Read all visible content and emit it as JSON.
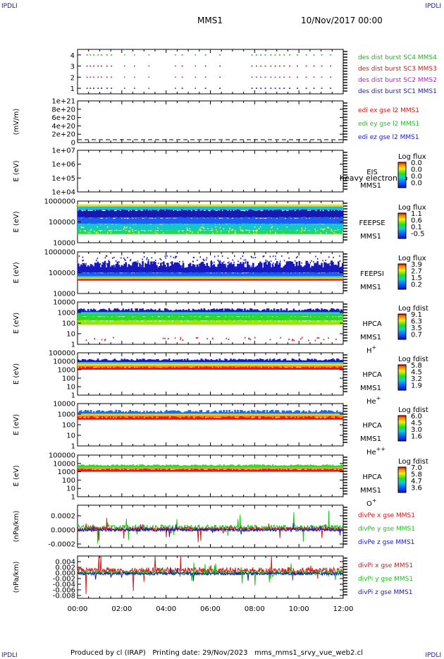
{
  "corner_labels": [
    "IPDLI",
    "IPDLI",
    "IPDLI",
    "IPDLI"
  ],
  "header": {
    "spacecraft": "MMS1",
    "date": "10/Nov/2017 00:00"
  },
  "footer": {
    "text": "Produced by cl (IRAP)   Printing date: 29/Nov/2023   mms_mms1_srvy_vue_web2.cl"
  },
  "colors": {
    "sc1": "#1818c8",
    "sc2": "#c818c8",
    "sc3": "#d81818",
    "sc4": "#18b818",
    "blue": "#1818c8",
    "red": "#d81818",
    "green": "#18c818"
  },
  "chart_data": [
    {
      "type": "scatter",
      "panel": "burst",
      "yticks": [
        "4",
        "3",
        "2",
        "1"
      ],
      "ylim": [
        0.5,
        4.5
      ],
      "series": [
        {
          "name": "des dist burst SC1 MMS1",
          "y": 1
        },
        {
          "name": "des dist burst SC2 MMS2",
          "y": 2
        },
        {
          "name": "des dist burst SC3 MMS3",
          "y": 3
        },
        {
          "name": "des dist burst SC4 MMS4",
          "y": 4
        }
      ],
      "burst_intervals_hours": [
        [
          0.4,
          0.5
        ],
        [
          0.55,
          0.65
        ],
        [
          0.7,
          0.8
        ],
        [
          0.9,
          1.0
        ],
        [
          1.05,
          1.15
        ],
        [
          1.3,
          1.45
        ],
        [
          1.5,
          1.6
        ],
        [
          2.1,
          2.15
        ],
        [
          2.55,
          2.6
        ],
        [
          3.2,
          3.25
        ],
        [
          4.4,
          4.45
        ],
        [
          4.7,
          4.8
        ],
        [
          5.3,
          5.35
        ],
        [
          5.75,
          5.85
        ],
        [
          6.4,
          6.5
        ],
        [
          7.85,
          7.95
        ],
        [
          8.05,
          8.15
        ],
        [
          8.25,
          8.4
        ],
        [
          8.45,
          8.55
        ],
        [
          8.7,
          8.8
        ],
        [
          8.9,
          9.0
        ],
        [
          9.1,
          9.2
        ],
        [
          9.3,
          9.4
        ],
        [
          9.55,
          9.65
        ],
        [
          9.9,
          10.0
        ],
        [
          10.3,
          10.4
        ],
        [
          10.65,
          10.75
        ],
        [
          11.0,
          11.1
        ],
        [
          11.4,
          11.5
        ]
      ]
    },
    {
      "type": "line",
      "panel": "edi",
      "ylabel": "(mV/m)",
      "yticks": [
        "1e+21",
        "8e+20",
        "6e+20",
        "4e+20",
        "2e+20",
        "0"
      ],
      "ylim": [
        0,
        1e+21
      ],
      "series": [
        {
          "name": "edi ex gse l2 MMS1"
        },
        {
          "name": "edi ey gse l2 MMS1"
        },
        {
          "name": "edi ez gse l2 MMS1"
        }
      ]
    },
    {
      "type": "heatmap",
      "panel": "eis",
      "ylabel": "E (eV)",
      "yticks": [
        "1e+07",
        "1e+06",
        "1e+05",
        "1e+04"
      ],
      "ylim": [
        10000.0,
        10000000.0
      ],
      "instrument": "EIS",
      "spacecraft": "MMS1",
      "overlay_text": "heavy electron to",
      "colorbar": {
        "title": "Log flux",
        "ticks": [
          "0.0",
          "0.0",
          "0.0",
          "0.0"
        ]
      }
    },
    {
      "type": "heatmap",
      "panel": "feepse",
      "ylabel": "E (eV)",
      "yticks": [
        "1000000",
        "100000",
        "10000"
      ],
      "ylim": [
        10000.0,
        1000000.0
      ],
      "instrument": "FEEPSE",
      "spacecraft": "MMS1",
      "colorbar": {
        "title": "Log flux",
        "ticks": [
          "1.1",
          "0.6",
          "0.1",
          "-0.5"
        ]
      }
    },
    {
      "type": "heatmap",
      "panel": "feepsi",
      "ylabel": "E (eV)",
      "yticks": [
        "1000000",
        "100000",
        "10000"
      ],
      "ylim": [
        10000.0,
        1000000.0
      ],
      "instrument": "FEEPSI",
      "spacecraft": "MMS1",
      "colorbar": {
        "title": "Log flux",
        "ticks": [
          "3.9",
          "2.7",
          "1.5",
          "0.2"
        ]
      }
    },
    {
      "type": "heatmap",
      "panel": "hpca_h",
      "ylabel": "E (eV)",
      "yticks": [
        "10000",
        "1000",
        "100",
        "10",
        "1"
      ],
      "ylim": [
        1,
        40000
      ],
      "instrument": "HPCA",
      "spacecraft": "MMS1",
      "species": "H+",
      "colorbar": {
        "title": "Log fdist",
        "ticks": [
          "9.1",
          "6.3",
          "3.5",
          "0.7"
        ]
      }
    },
    {
      "type": "heatmap",
      "panel": "hpca_he1",
      "ylabel": "E (eV)",
      "yticks": [
        "100000",
        "10000",
        "1000",
        "100",
        "10",
        "1"
      ],
      "ylim": [
        1,
        100000
      ],
      "instrument": "HPCA",
      "spacecraft": "MMS1",
      "species": "He+",
      "colorbar": {
        "title": "Log fdist",
        "ticks": [
          "5.8",
          "4.5",
          "3.2",
          "1.9"
        ]
      }
    },
    {
      "type": "heatmap",
      "panel": "hpca_he2",
      "ylabel": "E (eV)",
      "yticks": [
        "10000",
        "1000",
        "100",
        "10",
        "1"
      ],
      "ylim": [
        1,
        10000
      ],
      "instrument": "HPCA",
      "spacecraft": "MMS1",
      "species": "He++",
      "colorbar": {
        "title": "Log fdist",
        "ticks": [
          "6.0",
          "4.5",
          "3.0",
          "1.6"
        ]
      }
    },
    {
      "type": "heatmap",
      "panel": "hpca_o",
      "ylabel": "E (eV)",
      "yticks": [
        "100000",
        "10000",
        "1000",
        "100",
        "10",
        "1"
      ],
      "ylim": [
        1,
        100000
      ],
      "instrument": "HPCA",
      "spacecraft": "MMS1",
      "species": "O+",
      "colorbar": {
        "title": "Log fdist",
        "ticks": [
          "7.0",
          "5.8",
          "4.7",
          "3.6"
        ]
      }
    },
    {
      "type": "line",
      "panel": "divpe",
      "ylabel": "(nPa/km)",
      "yticks": [
        "0.0002",
        "0.0000",
        "-0.0002"
      ],
      "ylim": [
        -0.0003,
        0.0003
      ],
      "series": [
        {
          "name": "divPe x gse MMS1"
        },
        {
          "name": "divPe y gse MMS1"
        },
        {
          "name": "divPe z gse MMS1"
        }
      ]
    },
    {
      "type": "line",
      "panel": "divpi",
      "ylabel": "(nPa/km)",
      "yticks": [
        "0.004",
        "0.002",
        "0.000",
        "-0.002",
        "-0.004",
        "-0.006",
        "-0.008"
      ],
      "ylim": [
        -0.009,
        0.005
      ],
      "series": [
        {
          "name": "divPi x gse MMS1"
        },
        {
          "name": "divPi y gse MMS1"
        },
        {
          "name": "divPi z gse MMS1"
        }
      ]
    }
  ],
  "x_axis": {
    "ticks": [
      "00:00",
      "02:00",
      "04:00",
      "06:00",
      "08:00",
      "10:00",
      "12:00"
    ],
    "xlim": [
      0,
      12
    ]
  }
}
